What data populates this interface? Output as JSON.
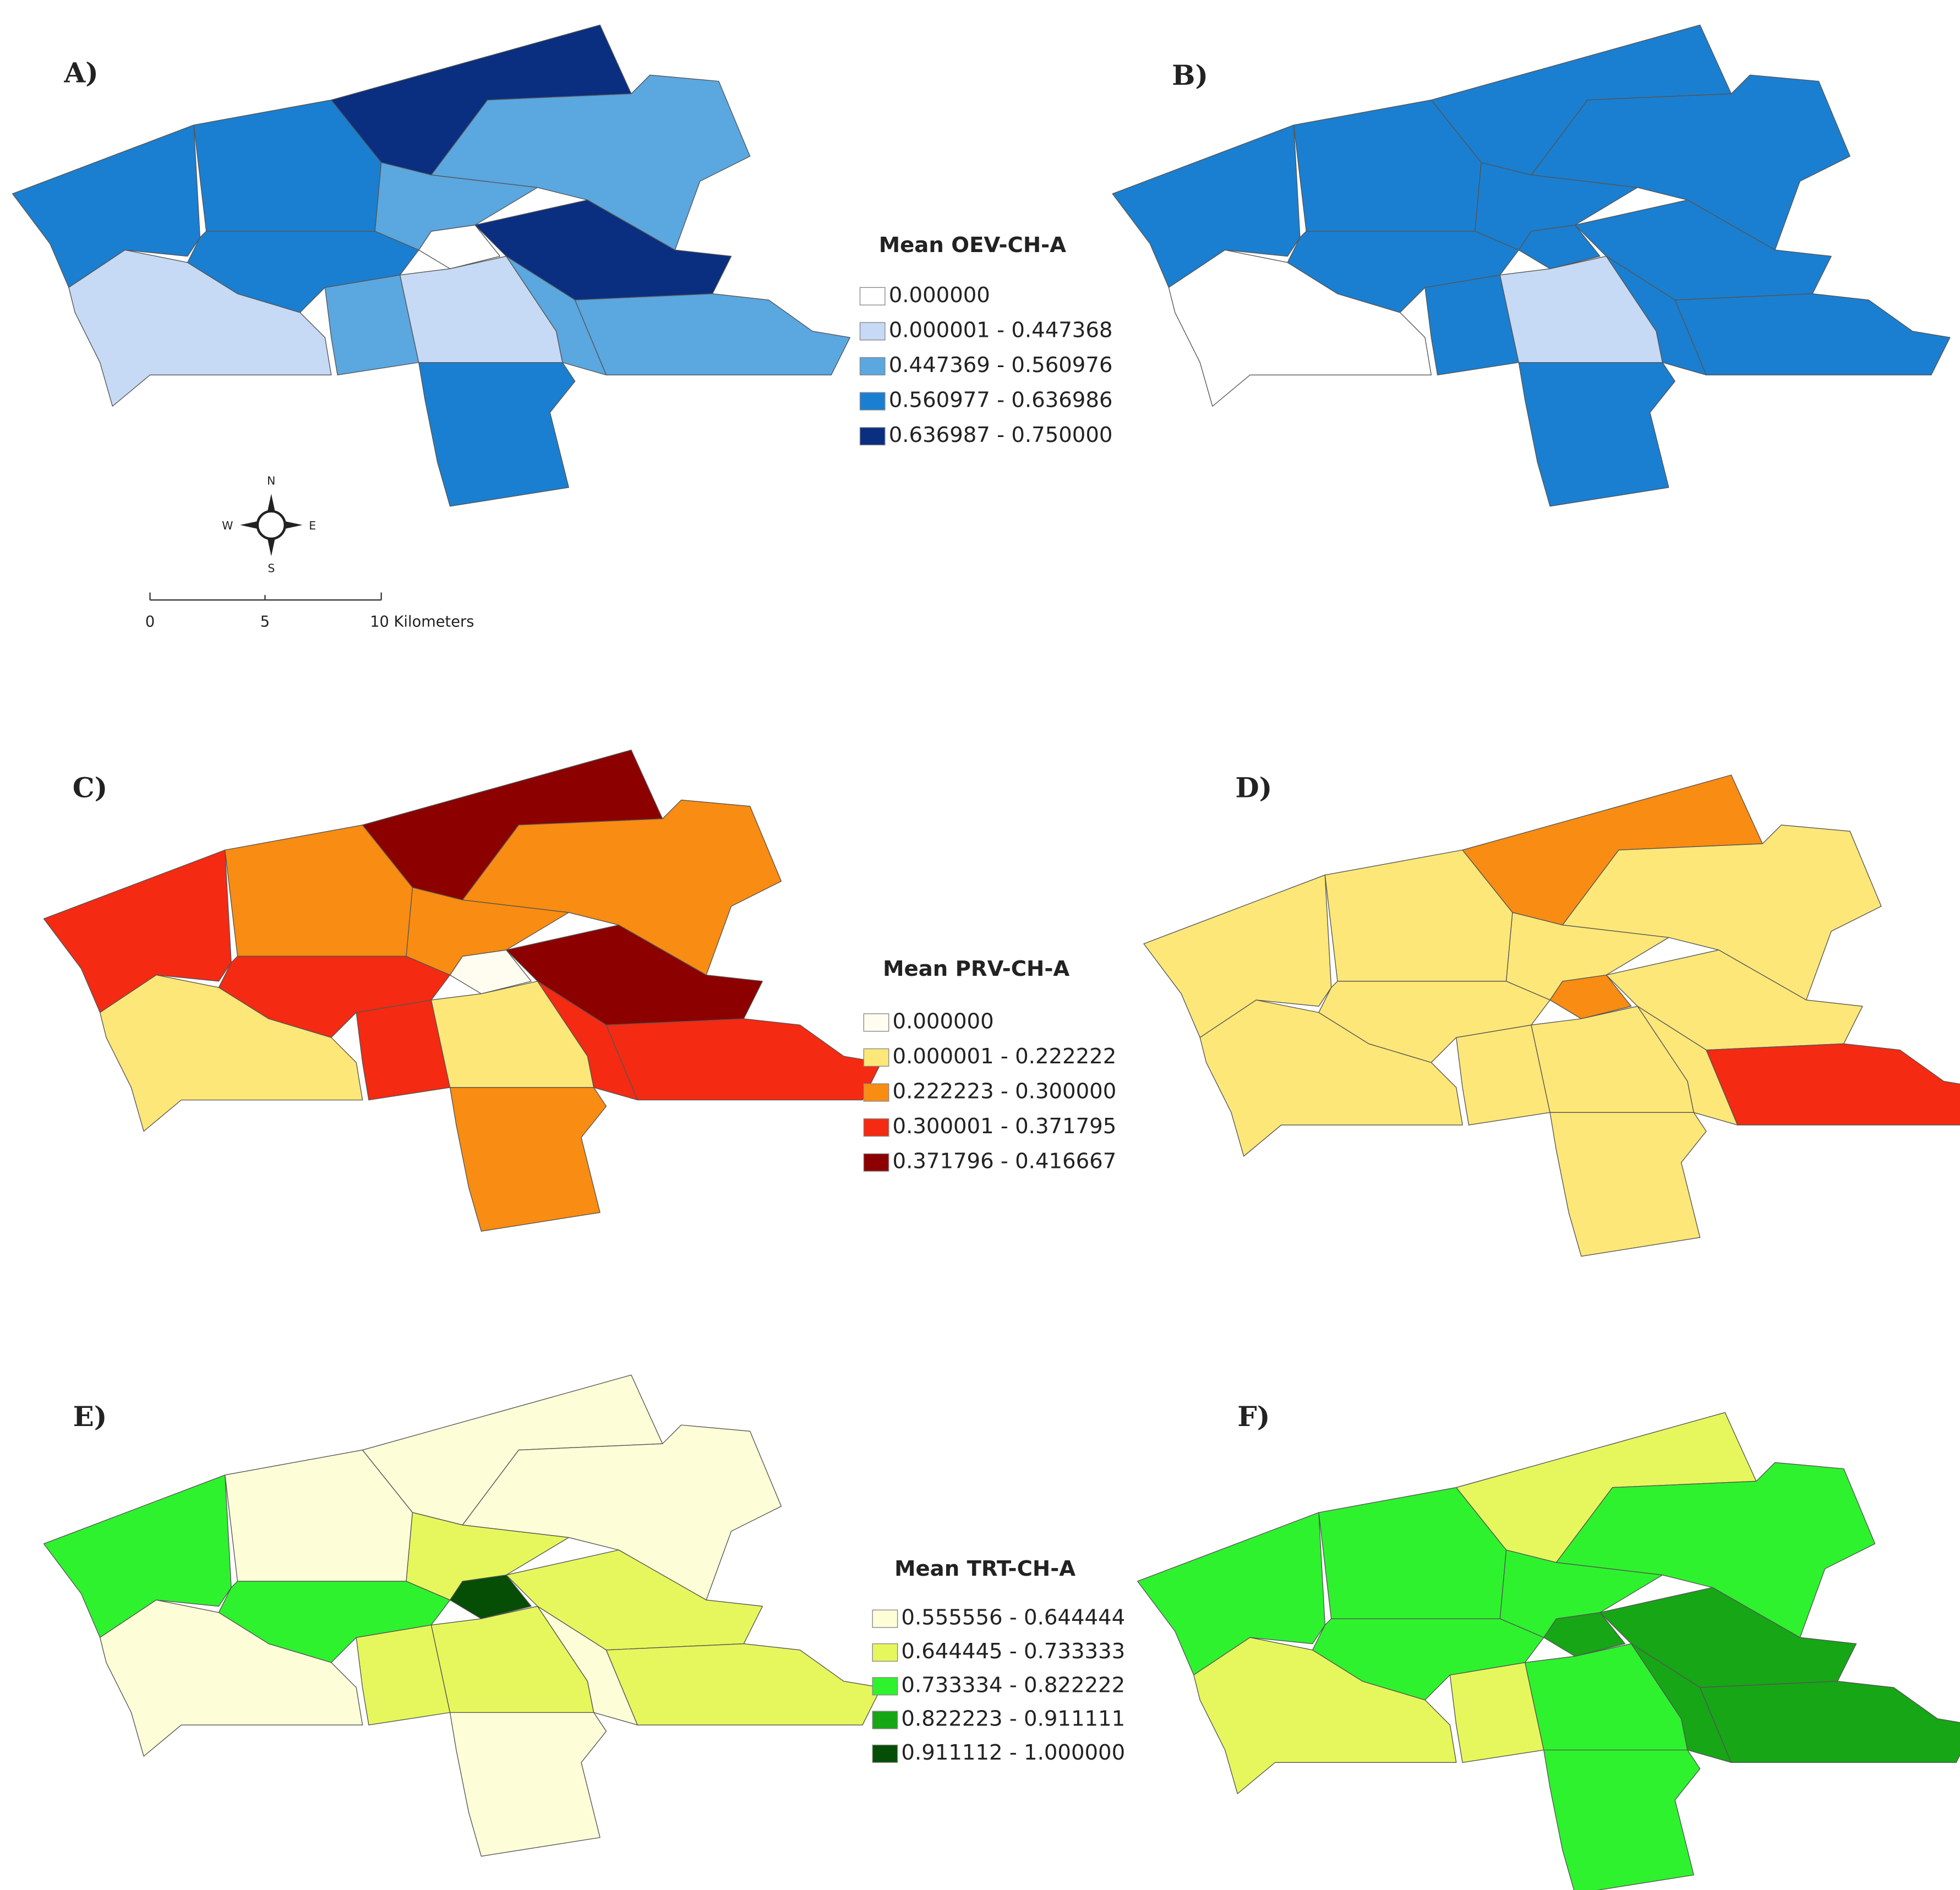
{
  "panels": [
    {
      "label": "A)"
    },
    {
      "label": "B)"
    },
    {
      "label": "C)"
    },
    {
      "label": "D)"
    },
    {
      "label": "E)"
    },
    {
      "label": "F)"
    }
  ],
  "legends": [
    {
      "title": "Mean OEV-CH-A",
      "items": [
        {
          "label": "0.000000",
          "color": "#ffffff"
        },
        {
          "label": "0.000001 - 0.447368",
          "color": "#c6d9f5"
        },
        {
          "label": "0.447369 - 0.560976",
          "color": "#5ba7e0"
        },
        {
          "label": "0.560977 - 0.636986",
          "color": "#1a7fd0"
        },
        {
          "label": "0.636987 - 0.750000",
          "color": "#0a2f80"
        }
      ]
    },
    {
      "title": "Mean PRV-CH-A",
      "items": [
        {
          "label": "0.000000",
          "color": "#fffdf0"
        },
        {
          "label": "0.000001 - 0.222222",
          "color": "#fde778"
        },
        {
          "label": "0.222223 - 0.300000",
          "color": "#f98c12"
        },
        {
          "label": "0.300001 - 0.371795",
          "color": "#f42a12"
        },
        {
          "label": "0.371796 - 0.416667",
          "color": "#8c0000"
        }
      ]
    },
    {
      "title": "Mean TRT-CH-A",
      "items": [
        {
          "label": "0.555556 - 0.644444",
          "color": "#fdfdd8"
        },
        {
          "label": "0.644445 - 0.733333",
          "color": "#e6f75d"
        },
        {
          "label": "0.733334 - 0.822222",
          "color": "#2ef22e"
        },
        {
          "label": "0.822223 - 0.911111",
          "color": "#16a616"
        },
        {
          "label": "0.911112 - 1.000000",
          "color": "#064d06"
        }
      ]
    }
  ],
  "compass": {
    "north": "N",
    "south": "S",
    "east": "E",
    "west": "W"
  },
  "scale_bar": {
    "labels": [
      "0",
      "5",
      "10 Kilometers"
    ]
  }
}
